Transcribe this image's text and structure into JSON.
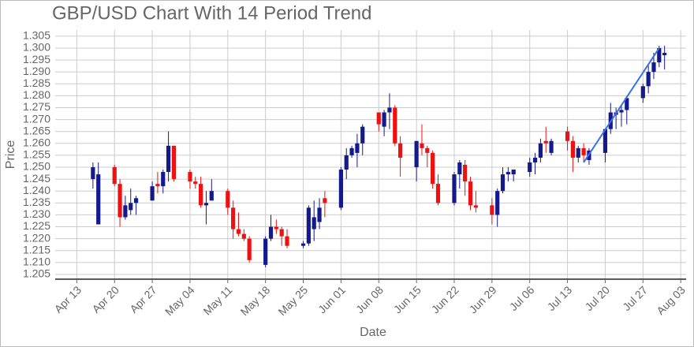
{
  "chart_data": {
    "type": "candlestick",
    "title": "GBP/USD Chart With 14 Period Trend",
    "x_label": "Date",
    "y_label": "Price",
    "x": [
      "Apr 16",
      "Apr 17",
      "Apr 20",
      "Apr 21",
      "Apr 22",
      "Apr 23",
      "Apr 24",
      "Apr 27",
      "Apr 28",
      "Apr 29",
      "Apr 30",
      "May 01",
      "May 04",
      "May 05",
      "May 06",
      "May 07",
      "May 08",
      "May 11",
      "May 12",
      "May 13",
      "May 14",
      "May 15",
      "May 18",
      "May 19",
      "May 20",
      "May 21",
      "May 22",
      "May 25",
      "May 26",
      "May 27",
      "May 28",
      "May 29",
      "Jun 01",
      "Jun 02",
      "Jun 03",
      "Jun 04",
      "Jun 05",
      "Jun 08",
      "Jun 09",
      "Jun 10",
      "Jun 11",
      "Jun 12",
      "Jun 15",
      "Jun 16",
      "Jun 17",
      "Jun 18",
      "Jun 19",
      "Jun 22",
      "Jun 23",
      "Jun 24",
      "Jun 25",
      "Jun 26",
      "Jun 29",
      "Jun 30",
      "Jul 01",
      "Jul 02",
      "Jul 03",
      "Jul 06",
      "Jul 07",
      "Jul 08",
      "Jul 09",
      "Jul 10",
      "Jul 13",
      "Jul 14",
      "Jul 15",
      "Jul 16",
      "Jul 17",
      "Jul 20",
      "Jul 21",
      "Jul 22",
      "Jul 23",
      "Jul 24",
      "Jul 27",
      "Jul 28",
      "Jul 29",
      "Jul 30",
      "Jul 31"
    ],
    "open": [
      1.245,
      1.226,
      1.25,
      1.243,
      1.229,
      1.232,
      1.235,
      1.236,
      1.243,
      1.242,
      1.248,
      1.259,
      1.248,
      1.244,
      1.243,
      1.234,
      1.236,
      1.24,
      1.233,
      1.224,
      1.222,
      1.22,
      1.209,
      1.22,
      1.225,
      1.224,
      1.221,
      1.217,
      1.218,
      1.224,
      1.227,
      1.237,
      1.233,
      1.249,
      1.255,
      1.256,
      1.26,
      1.273,
      1.267,
      1.273,
      1.275,
      1.26,
      1.25,
      1.26,
      1.258,
      1.256,
      1.243,
      1.235,
      1.247,
      1.251,
      1.244,
      1.234,
      1.234,
      1.23,
      1.24,
      1.247,
      1.247,
      1.248,
      1.252,
      1.254,
      1.261,
      1.256,
      1.265,
      1.261,
      1.254,
      1.258,
      1.253,
      1.256,
      1.266,
      1.272,
      1.273,
      1.274,
      1.279,
      1.284,
      1.29,
      1.294,
      1.297
    ],
    "high": [
      1.252,
      1.252,
      1.251,
      1.245,
      1.238,
      1.241,
      1.238,
      1.244,
      1.248,
      1.249,
      1.265,
      1.259,
      1.249,
      1.246,
      1.246,
      1.24,
      1.245,
      1.241,
      1.236,
      1.231,
      1.224,
      1.221,
      1.221,
      1.23,
      1.228,
      1.225,
      1.224,
      1.219,
      1.234,
      1.236,
      1.237,
      1.24,
      1.25,
      1.258,
      1.259,
      1.264,
      1.268,
      1.273,
      1.274,
      1.281,
      1.276,
      1.263,
      1.261,
      1.268,
      1.259,
      1.257,
      1.247,
      1.248,
      1.253,
      1.253,
      1.246,
      1.24,
      1.237,
      1.241,
      1.25,
      1.25,
      1.249,
      1.254,
      1.256,
      1.262,
      1.267,
      1.262,
      1.267,
      1.263,
      1.259,
      1.26,
      1.258,
      1.266,
      1.277,
      1.275,
      1.276,
      1.28,
      1.285,
      1.293,
      1.298,
      1.301,
      1.301
    ],
    "low": [
      1.241,
      1.226,
      1.242,
      1.225,
      1.228,
      1.23,
      1.23,
      1.236,
      1.239,
      1.239,
      1.244,
      1.244,
      1.241,
      1.241,
      1.233,
      1.226,
      1.236,
      1.23,
      1.22,
      1.221,
      1.219,
      1.21,
      1.208,
      1.219,
      1.222,
      1.217,
      1.216,
      1.216,
      1.217,
      1.219,
      1.224,
      1.229,
      1.232,
      1.245,
      1.254,
      1.25,
      1.255,
      1.265,
      1.263,
      1.266,
      1.259,
      1.246,
      1.244,
      1.255,
      1.25,
      1.241,
      1.234,
      1.234,
      1.241,
      1.238,
      1.232,
      1.231,
      1.226,
      1.225,
      1.239,
      1.244,
      1.244,
      1.246,
      1.247,
      1.252,
      1.256,
      1.255,
      1.257,
      1.248,
      1.252,
      1.252,
      1.251,
      1.252,
      1.264,
      1.266,
      1.267,
      1.268,
      1.277,
      1.281,
      1.287,
      1.292,
      1.291
    ],
    "close": [
      1.25,
      1.247,
      1.243,
      1.229,
      1.234,
      1.235,
      1.237,
      1.242,
      1.242,
      1.248,
      1.259,
      1.245,
      1.244,
      1.243,
      1.234,
      1.235,
      1.24,
      1.233,
      1.224,
      1.222,
      1.22,
      1.211,
      1.22,
      1.225,
      1.224,
      1.221,
      1.217,
      1.218,
      1.233,
      1.229,
      1.233,
      1.235,
      1.249,
      1.255,
      1.258,
      1.26,
      1.267,
      1.268,
      1.273,
      1.275,
      1.26,
      1.254,
      1.261,
      1.258,
      1.256,
      1.243,
      1.235,
      1.247,
      1.252,
      1.244,
      1.234,
      1.233,
      1.23,
      1.24,
      1.247,
      1.248,
      1.249,
      1.252,
      1.254,
      1.26,
      1.26,
      1.261,
      1.261,
      1.254,
      1.258,
      1.255,
      1.257,
      1.266,
      1.273,
      1.273,
      1.274,
      1.279,
      1.284,
      1.29,
      1.294,
      1.3,
      1.298
    ],
    "up_color": "#141a8c",
    "down_color": "#ee1111",
    "trend": {
      "x": [
        "Jul 16",
        "Jul 30"
      ],
      "values": [
        1.252,
        1.3
      ],
      "color": "#3a6fe8"
    },
    "xlim": [
      "Apr 09",
      "Aug 04"
    ],
    "xticks": [
      "Apr 13",
      "Apr 20",
      "Apr 27",
      "May 04",
      "May 11",
      "May 18",
      "May 25",
      "Jun 01",
      "Jun 08",
      "Jun 15",
      "Jun 22",
      "Jun 29",
      "Jul 06",
      "Jul 13",
      "Jul 20",
      "Jul 27",
      "Aug 03"
    ],
    "ylim": [
      1.203,
      1.3076
    ],
    "yticks": [
      1.205,
      {
        "value": 1.21,
        "label": "1.210"
      },
      1.215,
      {
        "value": 1.22,
        "label": "1.220"
      },
      1.225,
      {
        "value": 1.23,
        "label": "1.230"
      },
      1.235,
      {
        "value": 1.24,
        "label": "1.240"
      },
      1.245,
      {
        "value": 1.25,
        "label": "1.250"
      },
      1.255,
      {
        "value": 1.26,
        "label": "1.260"
      },
      1.265,
      {
        "value": 1.27,
        "label": "1.270"
      },
      1.275,
      {
        "value": 1.28,
        "label": "1.280"
      },
      1.285,
      {
        "value": 1.29,
        "label": "1.290"
      },
      1.295,
      {
        "value": 1.3,
        "label": "1.300"
      },
      1.305
    ],
    "grid": true
  }
}
